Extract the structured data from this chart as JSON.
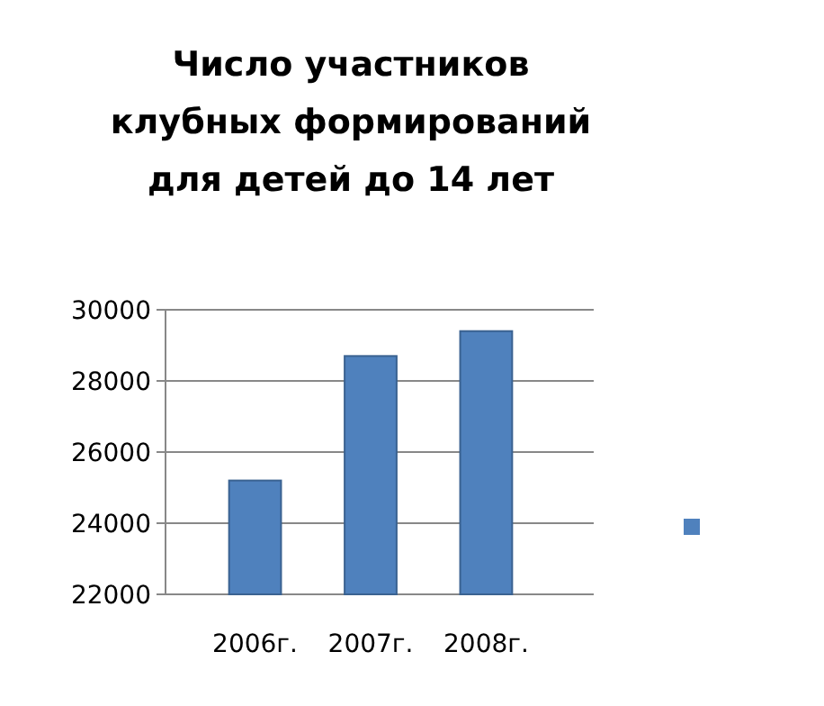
{
  "chart_data": {
    "type": "bar",
    "title": "Число участников клубных формирований для детей до 14 лет",
    "categories": [
      "2006г.",
      "2007г.",
      "2008г."
    ],
    "series": [
      {
        "color": "#4f81bd",
        "values": [
          25200,
          28700,
          29400
        ]
      }
    ],
    "ylim": [
      22000,
      30000
    ],
    "yticks": [
      22000,
      24000,
      26000,
      28000,
      30000
    ],
    "grid": "y"
  }
}
